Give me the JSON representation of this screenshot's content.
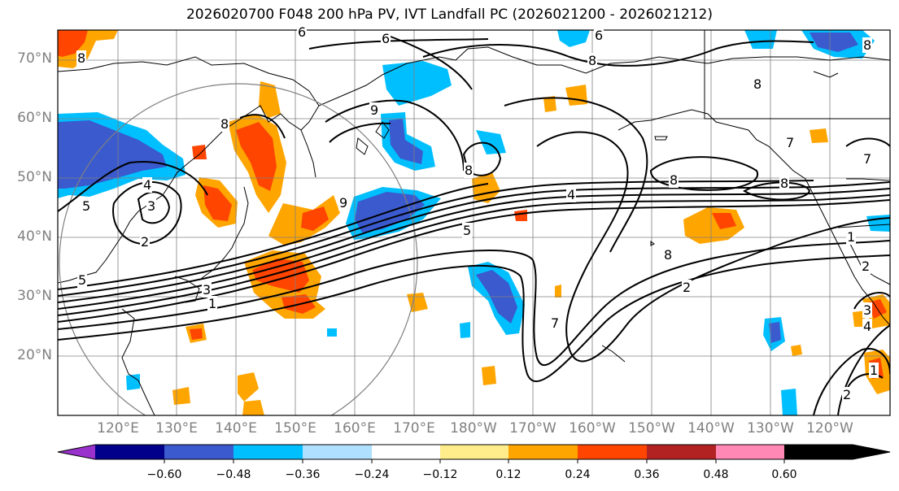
{
  "title": "2026020700 F048 200 hPa PV, IVT Landfall PC (2026021200 - 2026021212)",
  "lat_labels": [
    "70°N",
    "60°N",
    "50°N",
    "40°N",
    "30°N",
    "20°N"
  ],
  "lon_labels": [
    "120°E",
    "130°E",
    "140°E",
    "150°E",
    "160°E",
    "170°E",
    "180°W",
    "170°W",
    "160°W",
    "150°W",
    "140°W",
    "130°W",
    "120°W"
  ],
  "colorbar": {
    "colors": [
      "#9932cc",
      "#00008b",
      "#3a5acd",
      "#00bfff",
      "#b0e0ff",
      "#ffffff",
      "#ffec8b",
      "#ffa500",
      "#ff4500",
      "#b22222",
      "#ff88b4"
    ],
    "tick_labels": [
      "−0.60",
      "−0.48",
      "−0.36",
      "−0.24",
      "−0.12",
      "0.12",
      "0.24",
      "0.36",
      "0.48",
      "0.60"
    ]
  },
  "contour_labels": [
    "6",
    "6",
    "8",
    "8",
    "8",
    "7",
    "7",
    "8",
    "8",
    "8",
    "4",
    "3",
    "5",
    "5",
    "2",
    "1",
    "3",
    "5",
    "4",
    "7",
    "2",
    "8",
    "2",
    "1",
    "2",
    "3",
    "4",
    "1",
    "6",
    "8",
    "9",
    "9",
    "8"
  ],
  "colors": {
    "contour": "#000000",
    "grid": "#808080",
    "coast": "#000000",
    "circle": "#808080"
  }
}
